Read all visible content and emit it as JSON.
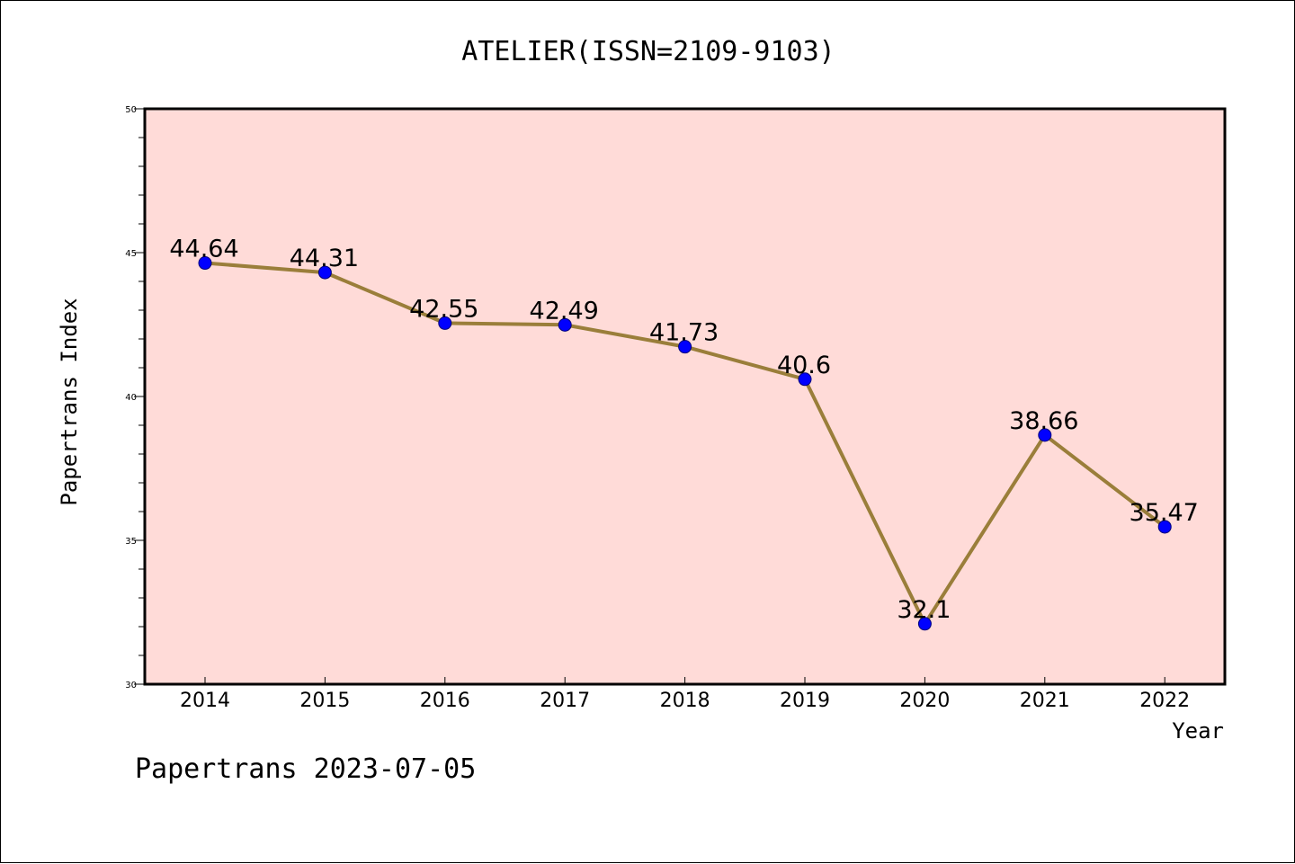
{
  "chart_data": {
    "type": "line",
    "title": "ATELIER(ISSN=2109-9103)",
    "xlabel": "Year",
    "ylabel": "Papertrans Index",
    "footer": "Papertrans 2023-07-05",
    "categories": [
      "2014",
      "2015",
      "2016",
      "2017",
      "2018",
      "2019",
      "2020",
      "2021",
      "2022"
    ],
    "series": [
      {
        "values": [
          44.64,
          44.31,
          42.55,
          42.49,
          41.73,
          40.6,
          32.1,
          38.66,
          35.47
        ]
      }
    ],
    "data_labels": [
      "44.64",
      "44.31",
      "42.55",
      "42.49",
      "41.73",
      "40.6",
      "32.1",
      "38.66",
      "35.47"
    ],
    "ylim": [
      30,
      50
    ],
    "y_ticks": [
      "30",
      "35",
      "40",
      "45",
      "50"
    ],
    "y_minor_step": 1,
    "grid": false,
    "colors": {
      "plot_background": "#FFDBD8",
      "line": "#9A7E3A",
      "marker": "#0000FF",
      "marker_edge": "#00007A"
    }
  }
}
